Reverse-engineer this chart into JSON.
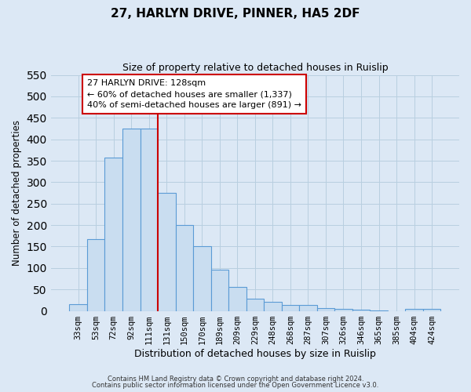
{
  "title": "27, HARLYN DRIVE, PINNER, HA5 2DF",
  "subtitle": "Size of property relative to detached houses in Ruislip",
  "xlabel": "Distribution of detached houses by size in Ruislip",
  "ylabel": "Number of detached properties",
  "bar_labels": [
    "33sqm",
    "53sqm",
    "72sqm",
    "92sqm",
    "111sqm",
    "131sqm",
    "150sqm",
    "170sqm",
    "189sqm",
    "209sqm",
    "229sqm",
    "248sqm",
    "268sqm",
    "287sqm",
    "307sqm",
    "326sqm",
    "346sqm",
    "365sqm",
    "385sqm",
    "404sqm",
    "424sqm"
  ],
  "bar_values": [
    15,
    168,
    357,
    425,
    425,
    275,
    200,
    150,
    96,
    55,
    28,
    22,
    14,
    14,
    7,
    5,
    3,
    1,
    0,
    5,
    5
  ],
  "bar_color": "#c9ddf0",
  "bar_edge_color": "#5b9bd5",
  "vline_color": "#cc0000",
  "vline_x_index": 5,
  "annotation_title": "27 HARLYN DRIVE: 128sqm",
  "annotation_line1": "← 60% of detached houses are smaller (1,337)",
  "annotation_line2": "40% of semi-detached houses are larger (891) →",
  "annotation_box_color": "#ffffff",
  "annotation_box_edge_color": "#cc0000",
  "ylim": [
    0,
    550
  ],
  "yticks": [
    0,
    50,
    100,
    150,
    200,
    250,
    300,
    350,
    400,
    450,
    500,
    550
  ],
  "footer1": "Contains HM Land Registry data © Crown copyright and database right 2024.",
  "footer2": "Contains public sector information licensed under the Open Government Licence v3.0.",
  "bg_color": "#dce8f5",
  "plot_bg_color": "#dce8f5",
  "grid_color": "#b8cfe0"
}
